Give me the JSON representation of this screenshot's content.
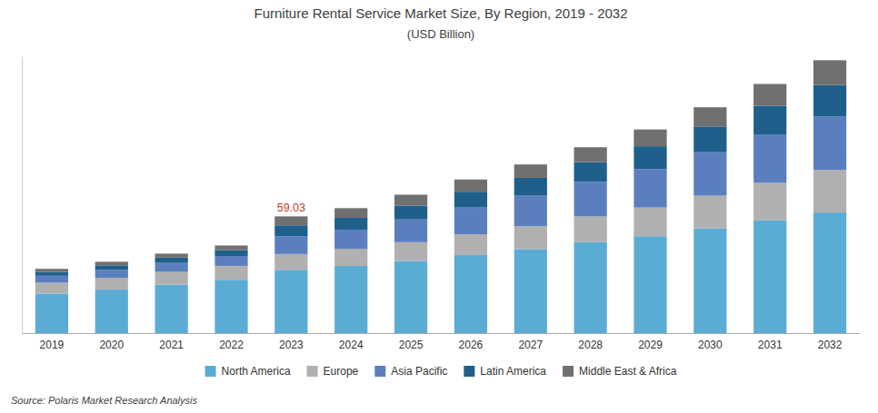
{
  "chart_data": {
    "type": "bar",
    "stacked": true,
    "title": "Furniture Rental Service Market Size, By Region, 2019 - 2032",
    "subtitle": "(USD Billion)",
    "source": "Source: Polaris  Market Research Analysis",
    "categories": [
      "2019",
      "2020",
      "2021",
      "2022",
      "2023",
      "2024",
      "2025",
      "2026",
      "2027",
      "2028",
      "2029",
      "2030",
      "2031",
      "2032"
    ],
    "series": [
      {
        "name": "North America",
        "color": "#5BACD4",
        "values": [
          20.0,
          22.0,
          24.5,
          27.0,
          32.0,
          34.0,
          36.5,
          39.5,
          42.5,
          46.0,
          49.0,
          53.0,
          57.0,
          61.0
        ]
      },
      {
        "name": "Europe",
        "color": "#B0B0B0",
        "values": [
          5.5,
          6.0,
          6.5,
          7.0,
          8.0,
          8.5,
          9.5,
          10.5,
          11.5,
          13.0,
          14.5,
          16.5,
          19.0,
          21.5
        ]
      },
      {
        "name": "Asia Pacific",
        "color": "#5B7FBE",
        "values": [
          3.5,
          4.0,
          4.5,
          5.0,
          9.03,
          9.8,
          11.5,
          13.5,
          15.5,
          17.5,
          19.5,
          22.0,
          24.5,
          27.0
        ]
      },
      {
        "name": "Latin America",
        "color": "#1F5F8B",
        "values": [
          2.0,
          2.3,
          2.7,
          3.0,
          5.5,
          6.0,
          7.0,
          8.0,
          9.0,
          10.0,
          11.5,
          13.0,
          14.5,
          16.0
        ]
      },
      {
        "name": "Middle East & Africa",
        "color": "#707070",
        "values": [
          1.5,
          1.8,
          2.0,
          2.3,
          4.5,
          4.9,
          5.5,
          6.2,
          6.8,
          7.5,
          8.5,
          9.7,
          11.0,
          12.5
        ]
      }
    ],
    "annotations": [
      {
        "text": "59.03",
        "category": "2023",
        "color": "#C0392B"
      }
    ],
    "ylim": [
      0,
      140
    ],
    "tick_labels": "x",
    "grid": false,
    "legend": "bottom"
  }
}
